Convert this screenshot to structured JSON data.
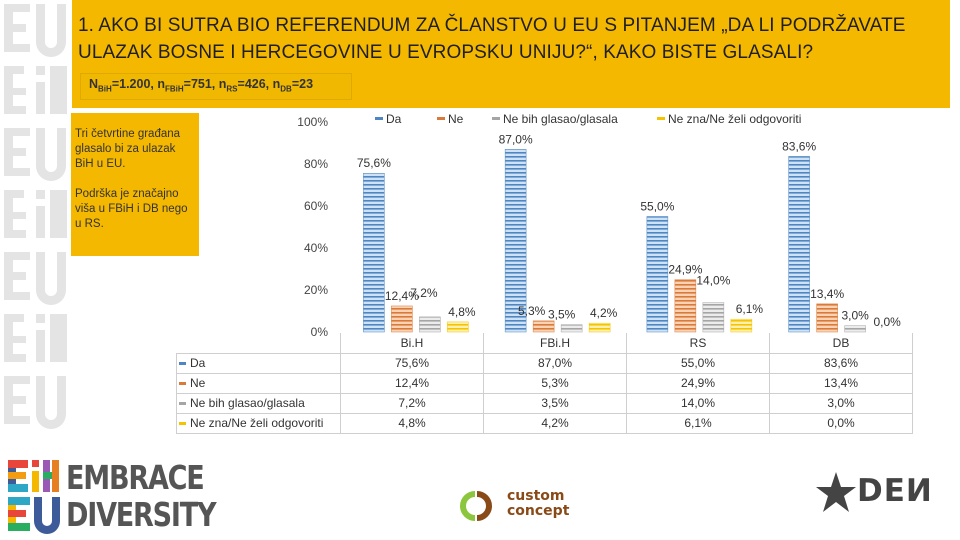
{
  "header": {
    "title": "1. Ako bi sutra bio referendum za članstvo u EU s pitanjem „Da li podržavate ulazak Bosne i Hercegovine u Evropsku uniju?“, kako biste glasali?",
    "sample": {
      "n_label": "N",
      "bih_sub": "BiH",
      "bih_val": "=1.200, ",
      "n2": "n",
      "fbih_sub": "FBiH",
      "fbih_val": "=751, ",
      "n3": "n",
      "rs_sub": "RS",
      "rs_val": "=426, ",
      "n4": "n",
      "db_sub": "DB",
      "db_val": "=23"
    }
  },
  "notes": {
    "note1": "Tri četvrtine građana glasalo bi za ulazak BiH u EU.",
    "note2": "Podrška je značajno viša u FBiH i DB nego u RS."
  },
  "chart_data": {
    "type": "bar",
    "categories": [
      "BiH",
      "FBiH",
      "RS",
      "DB"
    ],
    "series": [
      {
        "name": "Da",
        "values": [
          75.6,
          87.0,
          55.0,
          83.6
        ],
        "labels": [
          "75,6%",
          "87,0%",
          "55,0%",
          "83,6%"
        ],
        "color": "#9dc3e6",
        "color_dark": "#4e86c4"
      },
      {
        "name": "Ne",
        "values": [
          12.4,
          5.3,
          24.9,
          13.4
        ],
        "labels": [
          "12,4%",
          "5,3%",
          "24,9%",
          "13,4%"
        ],
        "color": "#f4b183",
        "color_dark": "#d97a3a"
      },
      {
        "name": "Ne bih glasao/glasala",
        "values": [
          7.2,
          3.5,
          14.0,
          3.0
        ],
        "labels": [
          "7,2%",
          "3,5%",
          "14,0%",
          "3,0%"
        ],
        "color": "#d9d9d9",
        "color_dark": "#a5a5a5"
      },
      {
        "name": "Ne zna/Ne želi odgovoriti",
        "values": [
          4.8,
          4.2,
          6.1,
          0.0
        ],
        "labels": [
          "4,8%",
          "4,2%",
          "6,1%",
          "0,0%"
        ],
        "color": "#ffe07a",
        "color_dark": "#f5c400"
      }
    ],
    "y_ticks": [
      "0%",
      "20%",
      "40%",
      "60%",
      "80%",
      "100%"
    ],
    "ylim": [
      0,
      100
    ],
    "legend_position": "top",
    "table": {
      "header": [
        "Bi.H",
        "FBi.H",
        "RS",
        "DB"
      ],
      "rows": [
        {
          "label": "Da",
          "values": [
            "75,6%",
            "87,0%",
            "55,0%",
            "83,6%"
          ]
        },
        {
          "label": "Ne",
          "values": [
            "12,4%",
            "5,3%",
            "24,9%",
            "13,4%"
          ]
        },
        {
          "label": "Ne bih glasao/glasala",
          "values": [
            "7,2%",
            "3,5%",
            "14,0%",
            "3,0%"
          ]
        },
        {
          "label": "Ne zna/Ne želi odgovoriti",
          "values": [
            "4,8%",
            "4,2%",
            "6,1%",
            "0,0%"
          ]
        }
      ]
    }
  },
  "footer": {
    "embrace_line1": "EMBRACE",
    "embrace_line2": "DIVERSITY",
    "custom_line1": "custom",
    "custom_line2": "concept",
    "den_text": "DEИ"
  }
}
